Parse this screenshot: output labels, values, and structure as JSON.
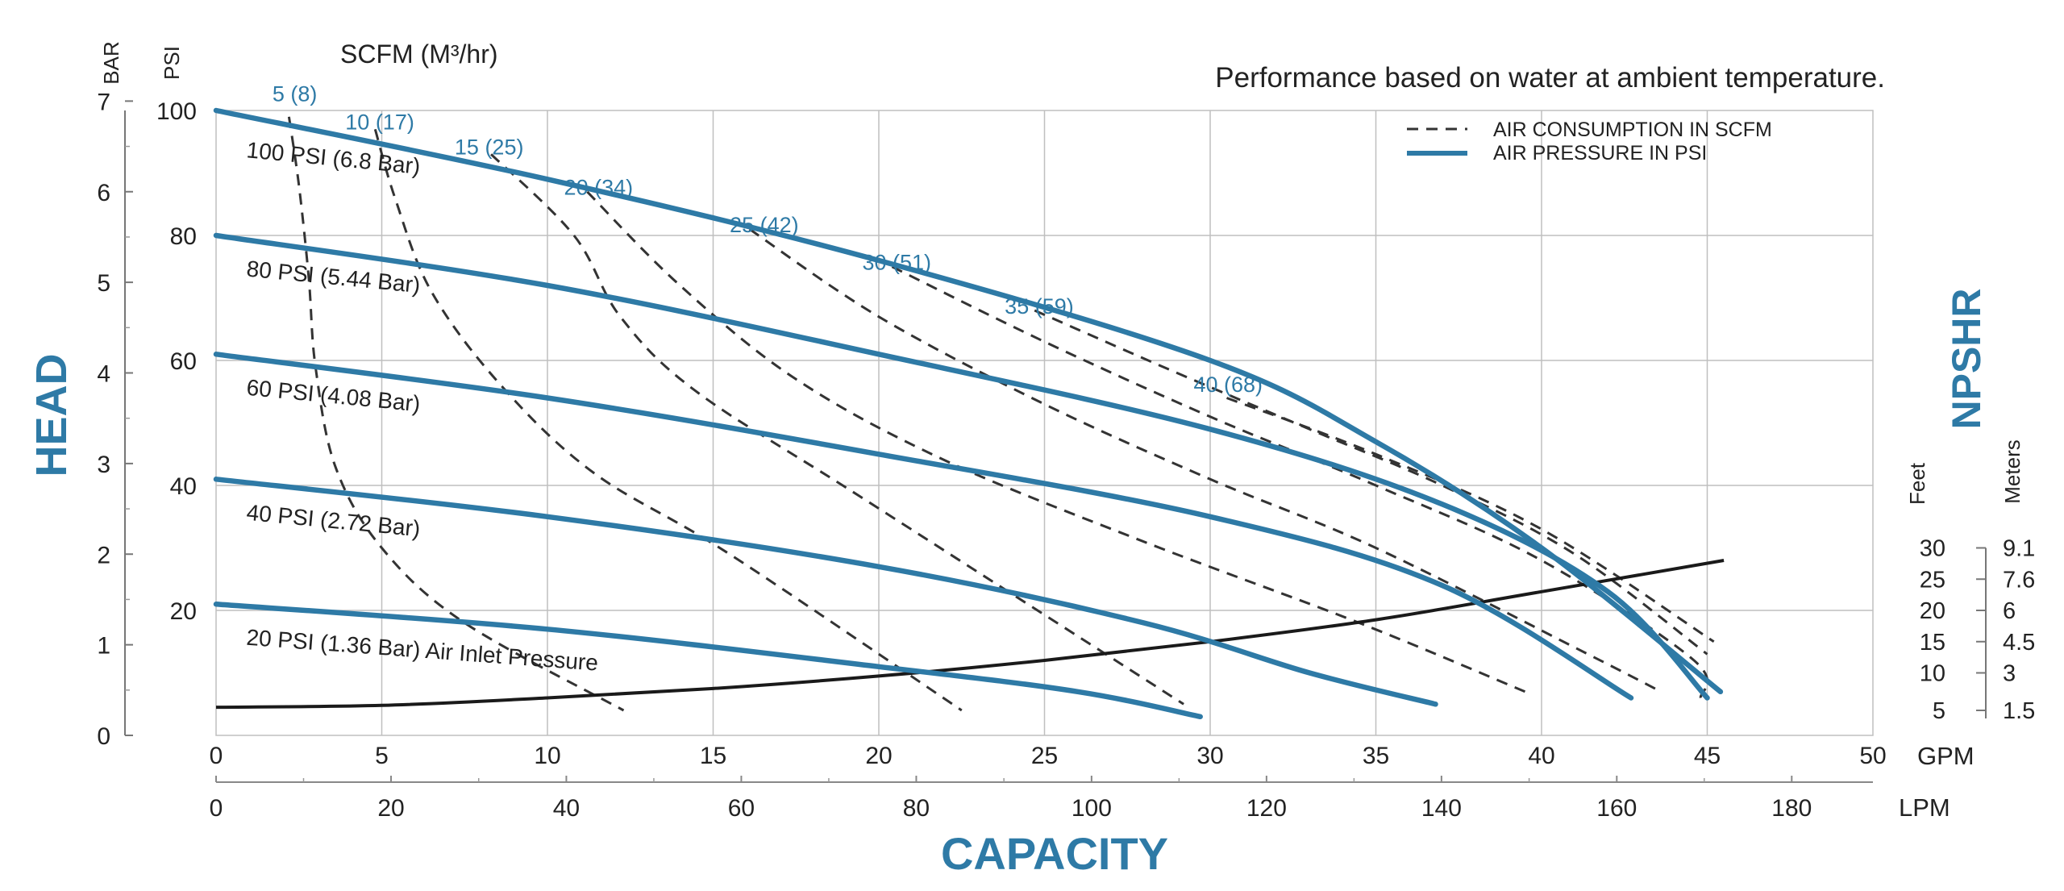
{
  "colors": {
    "pressure_curve": "#2e7aa6",
    "consumption_curve": "#333333",
    "npshr_curve": "#1a1a1a",
    "grid": "#bfbfbf",
    "heading_text": "#2e7aa6",
    "body_text": "#222222"
  },
  "chart_data": {
    "type": "line",
    "note": "Performance based on water at ambient temperature.",
    "scfm_header": "SCFM (M³/hr)",
    "xlabel": "CAPACITY",
    "ylabel": "HEAD",
    "right_label": "NPSHR",
    "units": {
      "gpm": "GPM",
      "lpm": "LPM",
      "psi": "PSI",
      "bar": "BAR",
      "feet": "Feet",
      "meters": "Meters"
    },
    "x_gpm_range": [
      0,
      50
    ],
    "y_psi_range": [
      0,
      100
    ],
    "grid": true,
    "legend_position": "top-right",
    "legend": [
      {
        "label": "AIR CONSUMPTION IN SCFM",
        "style": "dashed"
      },
      {
        "label": "AIR PRESSURE IN PSI",
        "style": "solid"
      }
    ],
    "x_ticks_gpm": [
      "0",
      "5",
      "10",
      "15",
      "20",
      "25",
      "30",
      "35",
      "40",
      "45",
      "50"
    ],
    "x_ticks_lpm": [
      {
        "label": "0",
        "gpm": 0
      },
      {
        "label": "20",
        "gpm": 5.28
      },
      {
        "label": "40",
        "gpm": 10.57
      },
      {
        "label": "60",
        "gpm": 15.85
      },
      {
        "label": "80",
        "gpm": 21.13
      },
      {
        "label": "100",
        "gpm": 26.42
      },
      {
        "label": "120",
        "gpm": 31.7
      },
      {
        "label": "140",
        "gpm": 36.98
      },
      {
        "label": "160",
        "gpm": 42.27
      },
      {
        "label": "180",
        "gpm": 47.55
      }
    ],
    "y_ticks_psi": [
      "20",
      "40",
      "60",
      "80",
      "100"
    ],
    "y_ticks_bar": [
      {
        "label": "0",
        "psi": 0
      },
      {
        "label": "1",
        "psi": 14.5
      },
      {
        "label": "2",
        "psi": 29
      },
      {
        "label": "3",
        "psi": 43.5
      },
      {
        "label": "4",
        "psi": 58
      },
      {
        "label": "5",
        "psi": 72.5
      },
      {
        "label": "6",
        "psi": 87
      },
      {
        "label": "7",
        "psi": 101.5
      }
    ],
    "npshr_ticks": [
      {
        "feet": "5",
        "meters": "1.5",
        "psi": 4
      },
      {
        "feet": "10",
        "meters": "3",
        "psi": 10
      },
      {
        "feet": "15",
        "meters": "4.5",
        "psi": 15
      },
      {
        "feet": "20",
        "meters": "6",
        "psi": 20
      },
      {
        "feet": "25",
        "meters": "7.6",
        "psi": 25
      },
      {
        "feet": "30",
        "meters": "9.1",
        "psi": 30
      }
    ],
    "pressure_series": [
      {
        "name": "100 PSI (6.8 Bar)",
        "points": [
          [
            0,
            100
          ],
          [
            10,
            89
          ],
          [
            20,
            76
          ],
          [
            30,
            60
          ],
          [
            35,
            47
          ],
          [
            40,
            30
          ],
          [
            45.4,
            7
          ]
        ]
      },
      {
        "name": "80 PSI (5.44 Bar)",
        "points": [
          [
            0,
            80
          ],
          [
            10,
            72
          ],
          [
            20,
            61
          ],
          [
            30,
            49
          ],
          [
            37,
            37
          ],
          [
            42,
            23
          ],
          [
            45,
            6
          ]
        ]
      },
      {
        "name": "60 PSI (4.08 Bar)",
        "points": [
          [
            0,
            61
          ],
          [
            10,
            54
          ],
          [
            20,
            45
          ],
          [
            30,
            35
          ],
          [
            37,
            24
          ],
          [
            42.7,
            6
          ]
        ]
      },
      {
        "name": "40 PSI (2.72 Bar)",
        "points": [
          [
            0,
            41
          ],
          [
            10,
            35
          ],
          [
            20,
            27
          ],
          [
            28,
            18
          ],
          [
            33,
            10
          ],
          [
            36.8,
            5
          ]
        ]
      },
      {
        "name": "20 PSI (1.36 Bar) Air Inlet Pressure",
        "points": [
          [
            0,
            21
          ],
          [
            10,
            17
          ],
          [
            20,
            11
          ],
          [
            26,
            7
          ],
          [
            29.7,
            3
          ]
        ]
      }
    ],
    "consumption_series": [
      {
        "name": "5 (8)",
        "points": [
          [
            2.2,
            99
          ],
          [
            2.5,
            88
          ],
          [
            2.8,
            73
          ],
          [
            3,
            59
          ],
          [
            3.6,
            43
          ],
          [
            5,
            30
          ],
          [
            7.5,
            18
          ],
          [
            12.3,
            4
          ]
        ]
      },
      {
        "name": "10 (17)",
        "points": [
          [
            4.8,
            97
          ],
          [
            5.4,
            86
          ],
          [
            6.5,
            71
          ],
          [
            8.6,
            56
          ],
          [
            11.4,
            42
          ],
          [
            15.5,
            29
          ],
          [
            22.5,
            4
          ]
        ]
      },
      {
        "name": "15 (25)",
        "points": [
          [
            8.3,
            93
          ],
          [
            10.8,
            80
          ],
          [
            12.2,
            67
          ],
          [
            14.5,
            55
          ],
          [
            19.5,
            38
          ],
          [
            29.2,
            5
          ]
        ]
      },
      {
        "name": "20 (34)",
        "points": [
          [
            11.2,
            87
          ],
          [
            14,
            72
          ],
          [
            17.5,
            57
          ],
          [
            22,
            44
          ],
          [
            28,
            31
          ],
          [
            34.5,
            18
          ],
          [
            39.5,
            7
          ]
        ]
      },
      {
        "name": "25 (42)",
        "points": [
          [
            16.1,
            81
          ],
          [
            20,
            67
          ],
          [
            25,
            53
          ],
          [
            30,
            41
          ],
          [
            35,
            30
          ],
          [
            41.4,
            13
          ],
          [
            43.6,
            7
          ]
        ]
      },
      {
        "name": "30 (51)",
        "points": [
          [
            20.4,
            75
          ],
          [
            25,
            63
          ],
          [
            30,
            51
          ],
          [
            35,
            40
          ],
          [
            40,
            28
          ],
          [
            44.6,
            12
          ],
          [
            44.8,
            6
          ]
        ]
      },
      {
        "name": "35 (59)",
        "points": [
          [
            24.7,
            68
          ],
          [
            29,
            58
          ],
          [
            33,
            49
          ],
          [
            37,
            40
          ],
          [
            41,
            29
          ],
          [
            45,
            13
          ]
        ]
      },
      {
        "name": "40 (68)",
        "points": [
          [
            30.5,
            54
          ],
          [
            35,
            45
          ],
          [
            40,
            33
          ],
          [
            45.2,
            15
          ]
        ]
      }
    ],
    "npshr_series": {
      "points": [
        [
          0,
          4.5
        ],
        [
          5,
          4.8
        ],
        [
          10,
          6
        ],
        [
          15,
          7.5
        ],
        [
          20,
          9.5
        ],
        [
          25,
          12
        ],
        [
          30,
          15
        ],
        [
          35,
          18.5
        ],
        [
          40,
          23
        ],
        [
          45.5,
          28
        ]
      ]
    }
  }
}
